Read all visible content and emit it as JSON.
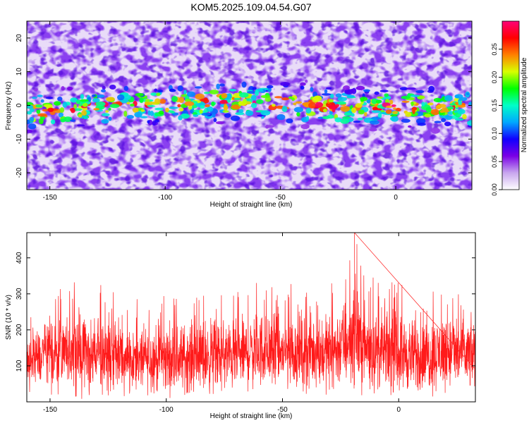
{
  "title": "KOM5.2025.109.04.54.G07",
  "chart_data": [
    {
      "type": "heatmap",
      "title": "KOM5.2025.109.04.54.G07",
      "xlabel": "Height of straight line (km)",
      "ylabel": "Frequency (Hz)",
      "xlim": [
        -160,
        33
      ],
      "ylim": [
        -25,
        25
      ],
      "xticks": [
        -150,
        -100,
        -50,
        0
      ],
      "yticks": [
        -20,
        -10,
        0,
        10,
        20
      ],
      "grid": false,
      "colorbar": {
        "label": "Normalized spectral amplitude",
        "range": [
          0,
          0.3
        ],
        "ticks": [
          "0.00",
          "0.05",
          "0.10",
          "0.15",
          "0.20",
          "0.25"
        ],
        "colormap": [
          "#ffffff",
          "#c8a6ee",
          "#7a00e6",
          "#1000ff",
          "#00a8ff",
          "#00ffc8",
          "#00ff00",
          "#d8ff00",
          "#ff8000",
          "#ff0000",
          "#ff0078"
        ]
      },
      "band": {
        "center_frequency_hz": [
          [
            -160,
            -2.0
          ],
          [
            -140,
            -1.0
          ],
          [
            -120,
            0.0
          ],
          [
            -100,
            0.5
          ],
          [
            -80,
            1.0
          ],
          [
            -60,
            1.0
          ],
          [
            -40,
            0.5
          ],
          [
            -20,
            -1.0
          ],
          [
            0,
            0.0
          ],
          [
            20,
            -0.5
          ],
          [
            33,
            -1.0
          ]
        ],
        "half_width_hz": 4,
        "peak_amplitude": 0.28
      }
    },
    {
      "type": "line",
      "xlabel": "Height of straight line (km)",
      "ylabel": "SNR (10 * v/v)",
      "xlim": [
        -160,
        33
      ],
      "ylim": [
        0,
        470
      ],
      "xticks": [
        -150,
        -100,
        -50,
        0
      ],
      "yticks": [
        100,
        200,
        300,
        400
      ],
      "line_color": "#ff0000",
      "sampled_extrema": [
        {
          "x": -160,
          "min": 20,
          "max": 260
        },
        {
          "x": -150,
          "min": 15,
          "max": 320
        },
        {
          "x": -140,
          "min": 10,
          "max": 335
        },
        {
          "x": -130,
          "min": 5,
          "max": 340
        },
        {
          "x": -120,
          "min": 15,
          "max": 305
        },
        {
          "x": -110,
          "min": 20,
          "max": 280
        },
        {
          "x": -100,
          "min": 10,
          "max": 300
        },
        {
          "x": -90,
          "min": 15,
          "max": 300
        },
        {
          "x": -80,
          "min": 10,
          "max": 320
        },
        {
          "x": -70,
          "min": 20,
          "max": 305
        },
        {
          "x": -60,
          "min": 25,
          "max": 340
        },
        {
          "x": -50,
          "min": 20,
          "max": 325
        },
        {
          "x": -40,
          "min": 20,
          "max": 340
        },
        {
          "x": -30,
          "min": 20,
          "max": 330
        },
        {
          "x": -22,
          "min": 25,
          "max": 395
        },
        {
          "x": -19,
          "min": 30,
          "max": 470
        },
        {
          "x": -15,
          "min": 15,
          "max": 380
        },
        {
          "x": -10,
          "min": 20,
          "max": 340
        },
        {
          "x": 0,
          "min": 15,
          "max": 335
        },
        {
          "x": 10,
          "min": 10,
          "max": 300
        },
        {
          "x": 20,
          "min": 20,
          "max": 340
        },
        {
          "x": 30,
          "min": 20,
          "max": 310
        }
      ]
    }
  ]
}
